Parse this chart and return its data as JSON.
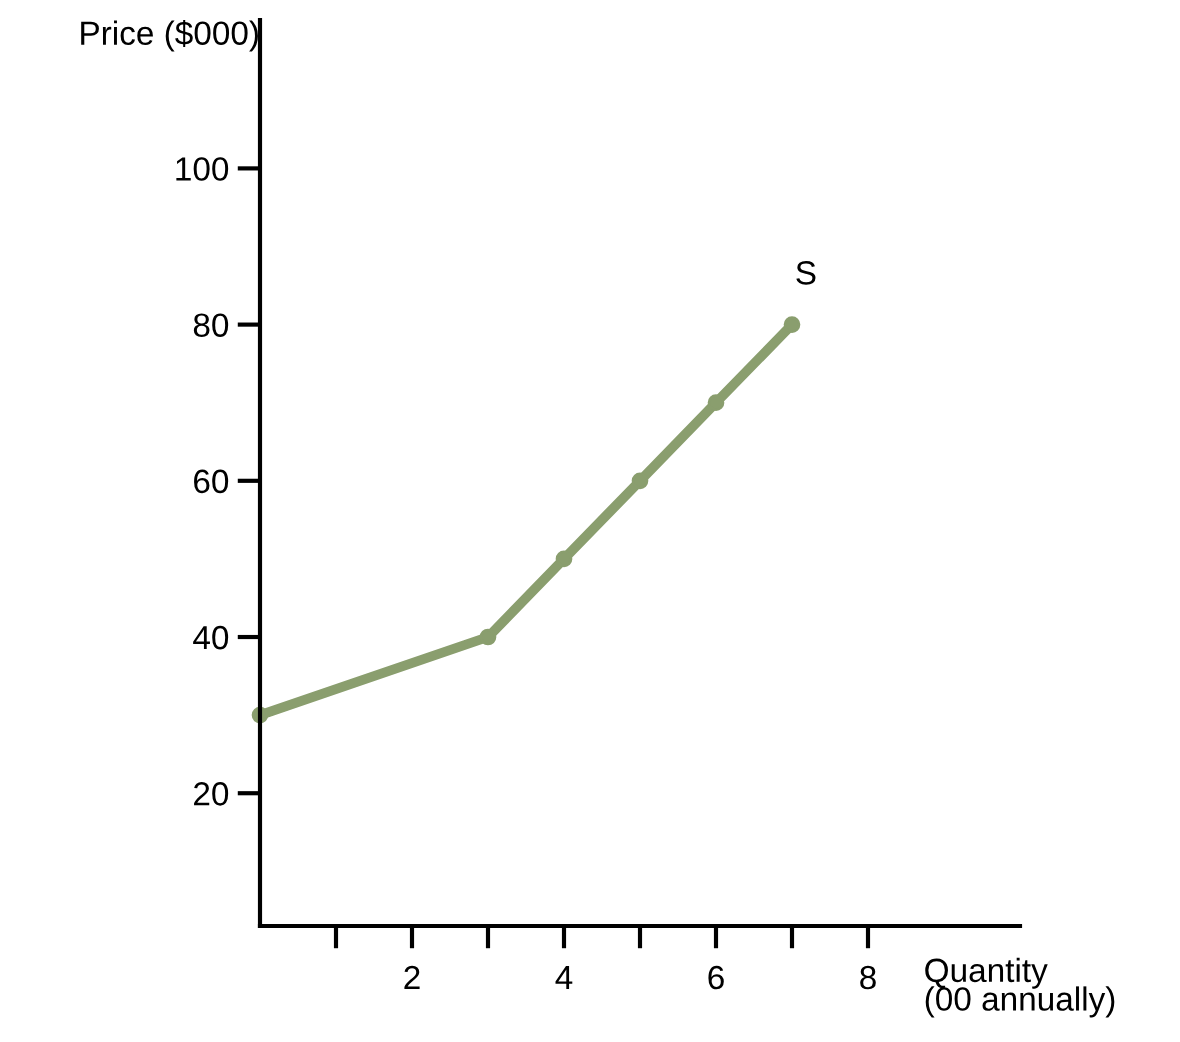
{
  "chart_data": {
    "type": "line",
    "xlabel": "Quantity\n(00 annually)",
    "ylabel": "Price ($000)",
    "x": [
      0,
      3,
      4,
      5,
      6,
      7
    ],
    "series": [
      {
        "name": "S",
        "color": "#8a9e6e",
        "values": [
          30,
          40,
          50,
          60,
          70,
          80
        ]
      }
    ],
    "xlim": [
      0,
      10
    ],
    "ylim": [
      3,
      119
    ],
    "xticks": [
      {
        "value": 1,
        "label": null
      },
      2,
      {
        "value": 3,
        "label": null
      },
      4,
      {
        "value": 5,
        "label": null
      },
      6,
      {
        "value": 7,
        "label": null
      },
      8
    ],
    "yticks": [
      20,
      40,
      60,
      80,
      100
    ],
    "marker": "circle",
    "line_style": "solid",
    "grid": false,
    "legend": false
  }
}
